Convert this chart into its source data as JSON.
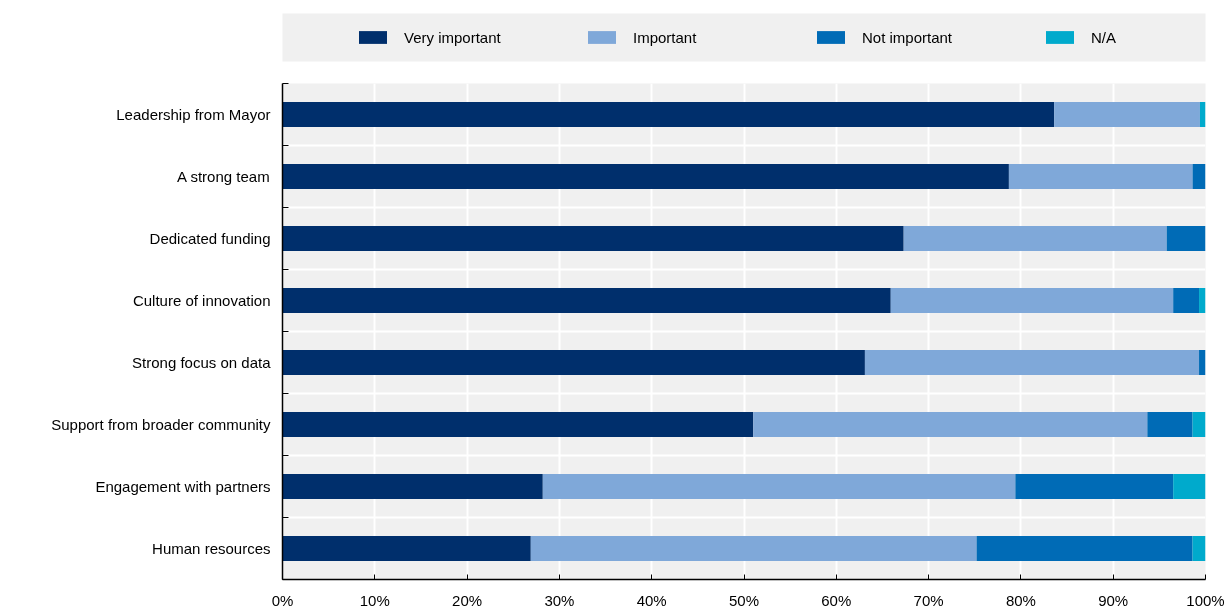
{
  "chart_data": {
    "type": "bar",
    "orientation": "horizontal",
    "stacked": true,
    "categories": [
      "Leadership from Mayor",
      "A strong team",
      "Dedicated funding",
      "Culture of innovation",
      "Strong focus on data",
      "Support from broader community",
      "Engagement with partners",
      "Human resources"
    ],
    "series": [
      {
        "name": "Very important",
        "color": "#002f6c",
        "values": [
          83.6,
          78.7,
          67.3,
          65.9,
          63.1,
          51.0,
          28.2,
          26.9
        ]
      },
      {
        "name": "Important",
        "color": "#7fa8d9",
        "values": [
          15.8,
          19.9,
          28.5,
          30.6,
          36.2,
          42.7,
          51.2,
          48.3
        ]
      },
      {
        "name": "Not important",
        "color": "#006bb6",
        "values": [
          null,
          1.4,
          4.2,
          2.8,
          0.7,
          4.9,
          17.1,
          23.4
        ]
      },
      {
        "name": "N/A",
        "color": "#00aacc",
        "values": [
          0.6,
          null,
          null,
          0.7,
          null,
          1.4,
          3.5,
          1.4
        ]
      }
    ],
    "xlim": [
      0,
      100
    ],
    "xticks": [
      {
        "value": 0,
        "label": "0%"
      },
      {
        "value": 10,
        "label": "10%"
      },
      {
        "value": 20,
        "label": "20%"
      },
      {
        "value": 30,
        "label": "30%"
      },
      {
        "value": 40,
        "label": "40%"
      },
      {
        "value": 50,
        "label": "50%"
      },
      {
        "value": 60,
        "label": "60%"
      },
      {
        "value": 70,
        "label": "70%"
      },
      {
        "value": 80,
        "label": "80%"
      },
      {
        "value": 90,
        "label": "90%"
      },
      {
        "value": 100,
        "label": "100%"
      }
    ],
    "grid": true,
    "legend": "top"
  }
}
